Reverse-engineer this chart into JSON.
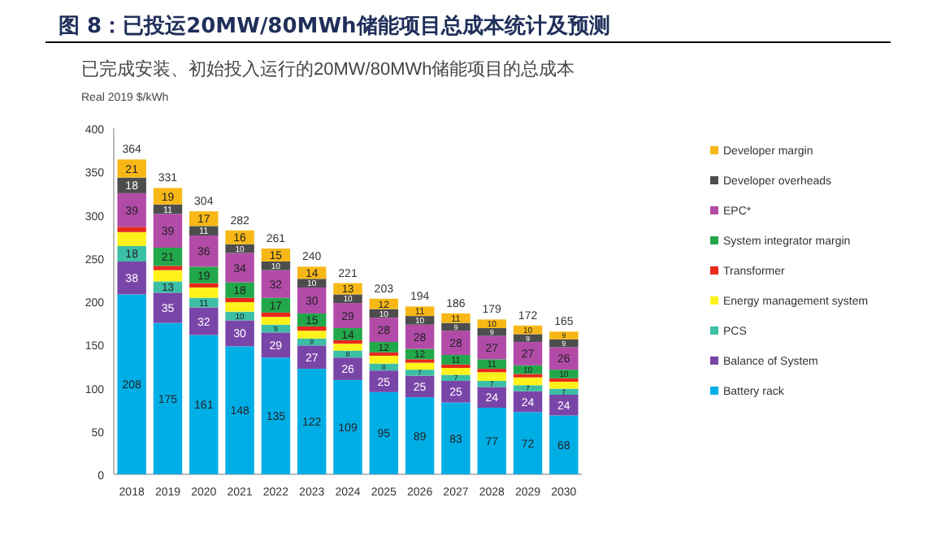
{
  "chart_data": {
    "type": "bar",
    "stacked": true,
    "title": "图 8：已投运20MW/80MWh储能项目总成本统计及预测",
    "subtitle": "已完成安装、初始投入运行的20MW/80MWh储能项目的总成本",
    "ylabel": "Real 2019 $/kWh",
    "categories": [
      "2018",
      "2019",
      "2020",
      "2021",
      "2022",
      "2023",
      "2024",
      "2025",
      "2026",
      "2027",
      "2028",
      "2029",
      "2030"
    ],
    "ylim": [
      0,
      400
    ],
    "yticks": [
      0,
      50,
      100,
      150,
      200,
      250,
      300,
      350,
      400
    ],
    "legend": "right",
    "totals": [
      "364",
      "331",
      "304",
      "282",
      "261",
      "240",
      "221",
      "203",
      "194",
      "186",
      "179",
      "172",
      "165"
    ],
    "series": [
      {
        "name": "Battery rack",
        "color": "#00aee6",
        "values": [
          208,
          175,
          161,
          148,
          135,
          122,
          109,
          95,
          89,
          83,
          77,
          72,
          68
        ],
        "value_labels": [
          "208",
          "175",
          "161",
          "148",
          "135",
          "122",
          "109",
          "95",
          "89",
          "83",
          "77",
          "72",
          "68"
        ]
      },
      {
        "name": "Balance of System",
        "color": "#7a45a8",
        "values": [
          38,
          35,
          32,
          30,
          29,
          27,
          26,
          25,
          25,
          25,
          24,
          24,
          24
        ],
        "value_labels": [
          "38",
          "35",
          "32",
          "30",
          "29",
          "27",
          "26",
          "25",
          "25",
          "25",
          "24",
          "24",
          "24"
        ]
      },
      {
        "name": "PCS",
        "color": "#3cbfa6",
        "values": [
          18,
          13,
          11,
          10,
          9,
          8,
          8,
          8,
          7,
          7,
          7,
          7,
          7
        ],
        "value_labels": [
          "18",
          "13",
          "11",
          "10",
          "9",
          "8",
          "8",
          "8",
          "7",
          "7",
          "7",
          "7",
          "7"
        ]
      },
      {
        "name": "Energy management system",
        "color": "#fff21a",
        "values": [
          16,
          13,
          12,
          11,
          9,
          9,
          8,
          9,
          8,
          8,
          10,
          9,
          8
        ],
        "value_labels": [
          null,
          null,
          null,
          null,
          null,
          null,
          null,
          null,
          null,
          null,
          null,
          null,
          null
        ]
      },
      {
        "name": "Transformer",
        "color": "#e8291c",
        "values": [
          6,
          5,
          5,
          5,
          5,
          5,
          4,
          4,
          4,
          4,
          4,
          4,
          4
        ],
        "value_labels": [
          null,
          null,
          null,
          null,
          null,
          null,
          null,
          null,
          null,
          null,
          null,
          null,
          null
        ]
      },
      {
        "name": "System integrator margin",
        "color": "#22a84a",
        "values": [
          null,
          21,
          19,
          18,
          17,
          15,
          14,
          12,
          12,
          11,
          11,
          10,
          10
        ],
        "value_labels": [
          null,
          "21",
          "19",
          "18",
          "17",
          "15",
          "14",
          "12",
          "12",
          "11",
          "11",
          "10",
          "10"
        ]
      },
      {
        "name": "EPC*",
        "color": "#b24ba8",
        "values": [
          39,
          39,
          36,
          34,
          32,
          30,
          29,
          28,
          28,
          28,
          27,
          27,
          26
        ],
        "value_labels": [
          "39",
          "39",
          "36",
          "34",
          "32",
          "30",
          "29",
          "28",
          "28",
          "28",
          "27",
          "27",
          "26"
        ]
      },
      {
        "name": "Developer overheads",
        "color": "#4d4d4d",
        "values": [
          18,
          11,
          11,
          10,
          10,
          10,
          10,
          10,
          10,
          9,
          9,
          9,
          9
        ],
        "value_labels": [
          "18",
          "11",
          "11",
          "10",
          "10",
          "10",
          "10",
          "10",
          "10",
          "9",
          "9",
          "9",
          "9"
        ]
      },
      {
        "name": "Developer margin",
        "color": "#f7b817",
        "values": [
          21,
          19,
          17,
          16,
          15,
          14,
          13,
          12,
          11,
          11,
          10,
          10,
          9
        ],
        "value_labels": [
          "21",
          "19",
          "17",
          "16",
          "15",
          "14",
          "13",
          "12",
          "11",
          "11",
          "10",
          "10",
          "9"
        ]
      }
    ]
  }
}
